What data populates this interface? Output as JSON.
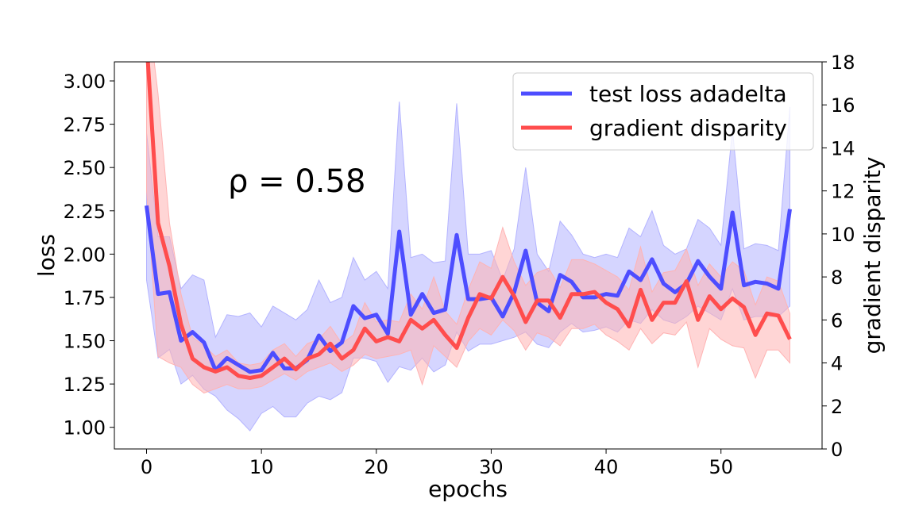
{
  "chart_data": {
    "type": "line",
    "xlabel": "epochs",
    "ylabel": "loss",
    "y2label": "gradient disparity",
    "annotation": "ρ = 0.58",
    "xlim": [
      -2.8,
      58.8
    ],
    "ylim": [
      0.875,
      3.11
    ],
    "y2lim": [
      0,
      18
    ],
    "xticks": [
      0,
      10,
      20,
      30,
      40,
      50
    ],
    "yticks": [
      1.0,
      1.25,
      1.5,
      1.75,
      2.0,
      2.25,
      2.5,
      2.75,
      3.0
    ],
    "ytick_labels": [
      "1.00",
      "1.25",
      "1.50",
      "1.75",
      "2.00",
      "2.25",
      "2.50",
      "2.75",
      "3.00"
    ],
    "y2ticks": [
      0,
      2,
      4,
      6,
      8,
      10,
      12,
      14,
      16,
      18
    ],
    "legend_position": "top-right",
    "grid": false,
    "x": [
      0,
      1,
      2,
      3,
      4,
      5,
      6,
      7,
      8,
      9,
      10,
      11,
      12,
      13,
      14,
      15,
      16,
      17,
      18,
      19,
      20,
      21,
      22,
      23,
      24,
      25,
      26,
      27,
      28,
      29,
      30,
      31,
      32,
      33,
      34,
      35,
      36,
      37,
      38,
      39,
      40,
      41,
      42,
      43,
      44,
      45,
      46,
      47,
      48,
      49,
      50,
      51,
      52,
      53,
      54,
      55,
      56
    ],
    "series": [
      {
        "name": "test loss adadelta",
        "axis": "left",
        "color": "#4d4dff",
        "band_color": "#b3b3ff",
        "values": [
          2.28,
          1.77,
          1.78,
          1.5,
          1.55,
          1.49,
          1.33,
          1.4,
          1.36,
          1.32,
          1.33,
          1.43,
          1.34,
          1.34,
          1.39,
          1.53,
          1.44,
          1.49,
          1.7,
          1.63,
          1.65,
          1.54,
          2.13,
          1.65,
          1.77,
          1.66,
          1.68,
          2.11,
          1.74,
          1.74,
          1.75,
          1.64,
          1.78,
          2.02,
          1.72,
          1.67,
          1.88,
          1.84,
          1.75,
          1.75,
          1.77,
          1.76,
          1.9,
          1.85,
          1.97,
          1.83,
          1.78,
          1.83,
          1.96,
          1.87,
          1.8,
          2.24,
          1.82,
          1.84,
          1.83,
          1.8,
          2.26
        ],
        "lower": [
          1.85,
          1.4,
          1.45,
          1.25,
          1.3,
          1.22,
          1.18,
          1.1,
          1.05,
          0.98,
          1.08,
          1.12,
          1.06,
          1.06,
          1.14,
          1.18,
          1.16,
          1.2,
          1.4,
          1.4,
          1.38,
          1.26,
          1.35,
          1.33,
          1.4,
          1.32,
          1.36,
          1.55,
          1.44,
          1.48,
          1.48,
          1.5,
          1.52,
          1.55,
          1.48,
          1.46,
          1.55,
          1.6,
          1.55,
          1.56,
          1.58,
          1.55,
          1.62,
          1.6,
          1.68,
          1.62,
          1.6,
          1.64,
          1.7,
          1.66,
          1.62,
          1.8,
          1.62,
          1.64,
          1.64,
          1.64,
          1.7
        ],
        "upper": [
          2.7,
          2.1,
          2.1,
          1.8,
          1.88,
          1.85,
          1.52,
          1.65,
          1.64,
          1.66,
          1.58,
          1.7,
          1.66,
          1.62,
          1.68,
          1.85,
          1.72,
          1.75,
          1.98,
          1.85,
          1.9,
          1.8,
          2.88,
          1.98,
          2.0,
          1.95,
          1.96,
          2.87,
          2.0,
          2.0,
          2.02,
          1.85,
          2.03,
          2.5,
          2.0,
          1.9,
          2.19,
          2.11,
          2.0,
          1.98,
          2.0,
          1.98,
          2.15,
          2.1,
          2.25,
          2.05,
          2.0,
          2.03,
          2.2,
          2.15,
          2.05,
          2.72,
          2.03,
          2.06,
          2.05,
          2.02,
          2.85
        ]
      },
      {
        "name": "gradient disparity",
        "axis": "right",
        "color": "#ff4d4d",
        "band_color": "#ffb3b3",
        "values": [
          19.0,
          10.5,
          8.5,
          5.8,
          4.2,
          3.8,
          3.6,
          3.8,
          3.4,
          3.3,
          3.4,
          3.8,
          4.2,
          3.7,
          4.2,
          4.4,
          4.9,
          4.2,
          4.6,
          5.6,
          5.0,
          5.2,
          5.0,
          6.0,
          5.6,
          6.0,
          5.3,
          4.7,
          6.1,
          7.2,
          7.0,
          8.0,
          7.1,
          5.9,
          6.9,
          6.9,
          6.1,
          7.2,
          7.2,
          7.3,
          6.8,
          6.5,
          5.7,
          7.4,
          6.0,
          6.8,
          6.8,
          7.8,
          6.0,
          7.1,
          6.5,
          7.0,
          6.6,
          5.3,
          6.3,
          6.2,
          5.1
        ],
        "lower": [
          12.0,
          4.3,
          4.0,
          3.8,
          3.0,
          2.6,
          2.8,
          3.0,
          2.8,
          2.8,
          2.9,
          3.2,
          3.5,
          3.2,
          3.6,
          3.8,
          4.0,
          3.6,
          3.9,
          4.4,
          4.2,
          4.3,
          4.4,
          4.6,
          3.0,
          4.8,
          4.3,
          3.8,
          5.0,
          5.6,
          5.3,
          6.0,
          5.5,
          4.6,
          5.4,
          5.2,
          4.8,
          5.6,
          5.6,
          5.8,
          5.3,
          5.0,
          4.6,
          5.6,
          4.9,
          5.4,
          5.3,
          5.9,
          3.8,
          5.6,
          5.1,
          4.8,
          4.7,
          3.3,
          4.6,
          4.6,
          4.0
        ],
        "upper": [
          21.0,
          16.5,
          10.5,
          7.2,
          5.2,
          4.8,
          4.3,
          4.6,
          4.0,
          3.9,
          4.0,
          4.6,
          4.9,
          4.3,
          4.9,
          5.1,
          5.7,
          4.9,
          5.3,
          6.8,
          5.9,
          6.0,
          5.9,
          7.2,
          6.5,
          8.0,
          6.4,
          5.8,
          7.4,
          8.7,
          8.4,
          10.3,
          8.7,
          7.6,
          8.2,
          8.4,
          7.5,
          8.8,
          8.8,
          8.6,
          8.3,
          8.0,
          7.4,
          9.4,
          7.3,
          8.2,
          8.3,
          9.3,
          7.6,
          8.6,
          8.0,
          8.7,
          8.3,
          6.7,
          8.0,
          7.8,
          6.3
        ]
      }
    ]
  }
}
